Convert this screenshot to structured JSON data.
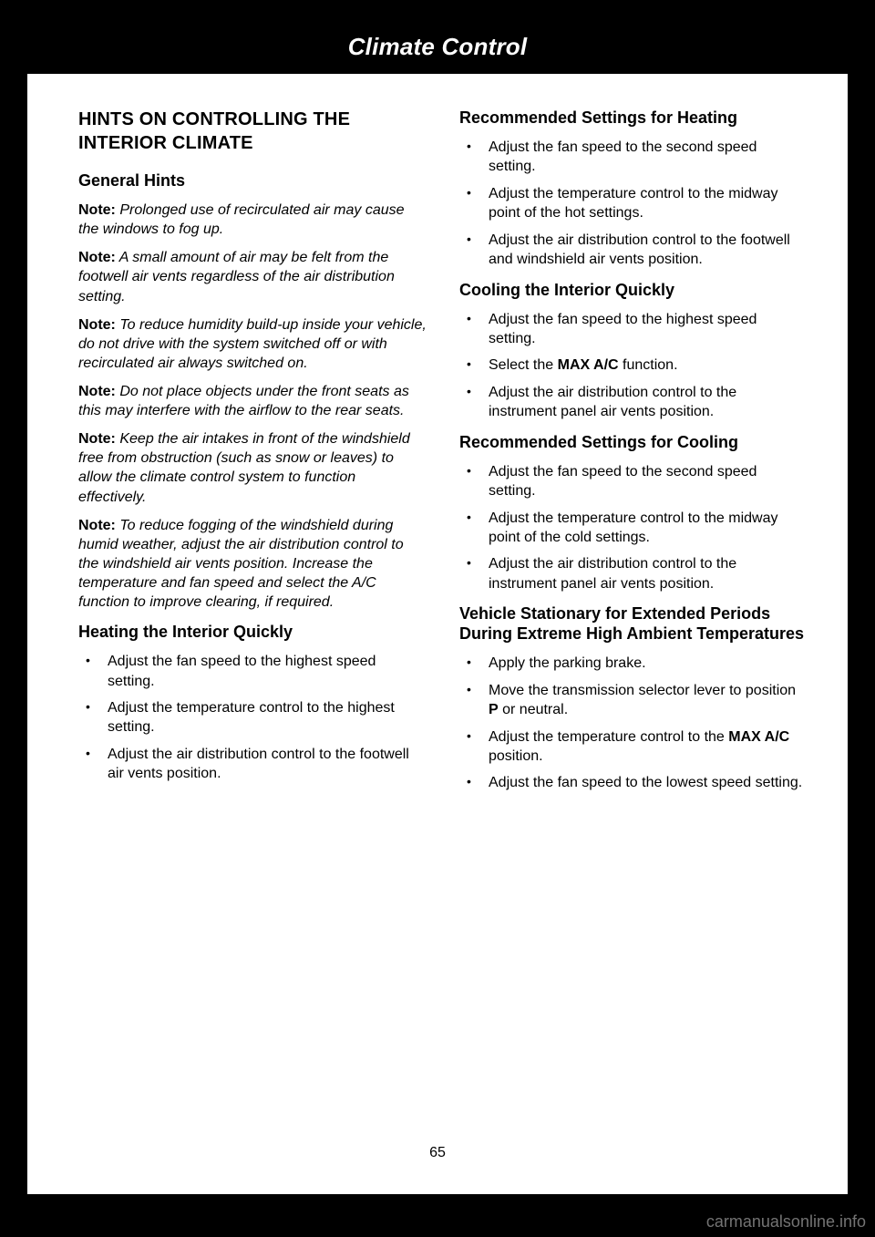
{
  "header": {
    "title": "Climate Control"
  },
  "left": {
    "section_title": "HINTS ON CONTROLLING THE INTERIOR CLIMATE",
    "general_hints_heading": "General Hints",
    "note_label": "Note:",
    "notes": [
      "Prolonged use of recirculated air may cause the windows to fog up.",
      "A small amount of air may be felt from the footwell air vents regardless of the air distribution setting.",
      "To reduce humidity build-up inside your vehicle, do not drive with the system switched off or with recirculated air always switched on.",
      "Do not place objects under the front seats as this may interfere with the airflow to the rear seats.",
      "Keep the air intakes in front of the windshield free from obstruction (such as snow or leaves) to allow the climate control system to function effectively.",
      "To reduce fogging of the windshield during humid weather, adjust the air distribution control to the windshield air vents position. Increase the temperature and fan speed and select the A/C function to improve clearing, if required."
    ],
    "heating_quick_heading": "Heating the Interior Quickly",
    "heating_quick_items": [
      "Adjust the fan speed to the highest speed setting.",
      "Adjust the temperature control to the highest setting.",
      "Adjust the air distribution control to the footwell air vents position."
    ]
  },
  "right": {
    "rec_heat_heading": "Recommended Settings for Heating",
    "rec_heat_items": [
      "Adjust the fan speed to the second speed setting.",
      "Adjust the temperature control to the midway point of the hot settings.",
      "Adjust the air distribution control to the footwell and windshield air vents position."
    ],
    "cool_quick_heading": "Cooling the Interior Quickly",
    "cool_quick_items_0": "Adjust the fan speed to the highest speed setting.",
    "cool_quick_select_pre": "Select the ",
    "cool_quick_select_bold": "MAX A/C",
    "cool_quick_select_post": " function.",
    "cool_quick_items_2": "Adjust the air distribution control to the instrument panel air vents position.",
    "rec_cool_heading": "Recommended Settings for Cooling",
    "rec_cool_items": [
      "Adjust the fan speed to the second speed setting.",
      "Adjust the temperature control to the midway point of the cold settings.",
      "Adjust the air distribution control to the instrument panel air vents position."
    ],
    "stationary_heading": "Vehicle Stationary for Extended Periods During Extreme High Ambient Temperatures",
    "stationary_items_0": "Apply the parking brake.",
    "stationary_move_pre": "Move the transmission selector lever to position ",
    "stationary_move_bold": "P",
    "stationary_move_post": " or neutral.",
    "stationary_temp_pre": "Adjust the temperature control to the ",
    "stationary_temp_bold": "MAX A/C",
    "stationary_temp_post": " position.",
    "stationary_items_3": "Adjust the fan speed to the lowest speed setting."
  },
  "footer": {
    "pagenum": "65",
    "watermark": "carmanualsonline.info"
  }
}
